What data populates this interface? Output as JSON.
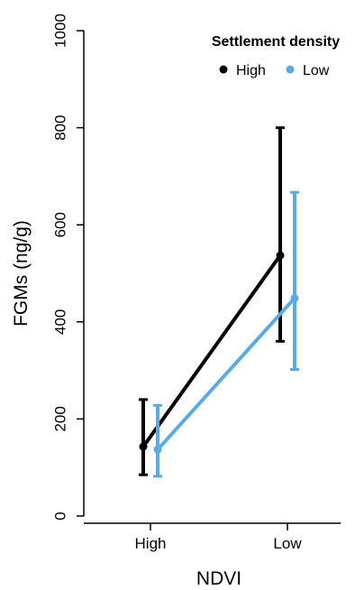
{
  "chart_data": {
    "type": "line",
    "xlabel": "NDVI",
    "ylabel": "FGMs (ng/g)",
    "categories": [
      "High",
      "Low"
    ],
    "ylim": [
      0,
      1000
    ],
    "yticks": [
      0,
      200,
      400,
      600,
      800,
      1000
    ],
    "grid": false,
    "legend": {
      "title": "Settlement density",
      "placement": "top-right",
      "entries": [
        "High",
        "Low"
      ]
    },
    "series": [
      {
        "name": "High",
        "color": "#000000",
        "values": [
          143,
          537
        ],
        "err_low": [
          85,
          360
        ],
        "err_high": [
          240,
          800
        ]
      },
      {
        "name": "Low",
        "color": "#5aaae8",
        "values": [
          137,
          449
        ],
        "err_low": [
          82,
          302
        ],
        "err_high": [
          228,
          667
        ]
      }
    ]
  }
}
